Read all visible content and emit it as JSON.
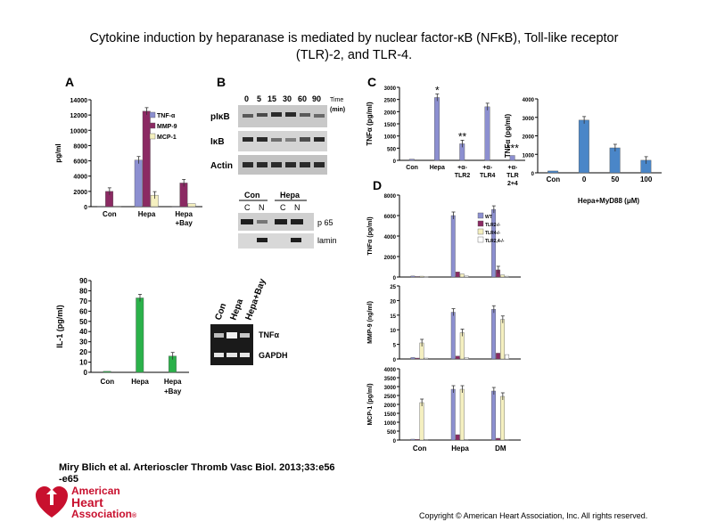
{
  "title": {
    "line1": "Cytokine induction by heparanase is mediated by nuclear factor-κB (NFκB), Toll-like receptor",
    "line2": "(TLR)-2, and TLR-4."
  },
  "panels": {
    "A": "A",
    "B": "B",
    "C": "C",
    "D": "D"
  },
  "blot_B": {
    "time_values": [
      "0",
      "5",
      "15",
      "30",
      "60",
      "90"
    ],
    "time_label": "Time",
    "time_unit": "(min)",
    "rows": [
      "pIκB",
      "IκB",
      "Actin"
    ],
    "lanes_groups": [
      "Con",
      "Hepa"
    ],
    "lanes_sub": [
      "C",
      "N",
      "C",
      "N"
    ],
    "rows2": [
      "p 65",
      "lamin"
    ]
  },
  "gel_A2": {
    "lanes": [
      "Con",
      "Hepa",
      "Hepa+Bay"
    ],
    "rows": [
      "TNFα",
      "GAPDH"
    ]
  },
  "citation": {
    "line1": "Miry Blich et al. Arterioscler Thromb Vasc Biol. 2013;33:e56",
    "line2": "-e65"
  },
  "logo": {
    "line1": "American",
    "line2": "Heart",
    "line3": "Association",
    "mark": "®"
  },
  "copyright": "Copyright © American Heart Association, Inc. All rights reserved.",
  "colors": {
    "purple": "#8b2a63",
    "blue": "#8c8fd0",
    "cream": "#f5f0c0",
    "green": "#2bb14a",
    "c_blue": "#4a86c8",
    "red": "#c8102e"
  },
  "chart_data": [
    {
      "id": "A-top",
      "type": "bar",
      "ylabel": "pg/ml",
      "ylim": [
        0,
        14000
      ],
      "yticks": [
        "0",
        "2000",
        "4000",
        "6000",
        "8000",
        "10000",
        "12000",
        "14000"
      ],
      "categories": [
        "Con",
        "Hepa",
        "Hepa +Bay"
      ],
      "legend": [
        "TNF-α",
        "MMP-9",
        "MCP-1"
      ],
      "series": [
        {
          "name": "TNF-α",
          "values": [
            0,
            6100,
            0
          ],
          "color": "#8c8fd0"
        },
        {
          "name": "MMP-9",
          "values": [
            2000,
            12500,
            3100
          ],
          "color": "#8b2a63"
        },
        {
          "name": "MCP-1",
          "values": [
            0,
            1500,
            400
          ],
          "color": "#f5f0c0"
        }
      ]
    },
    {
      "id": "A-bottom",
      "type": "bar",
      "ylabel": "IL-1 (pg/ml)",
      "ylim": [
        0,
        90
      ],
      "yticks": [
        "0",
        "10",
        "20",
        "30",
        "40",
        "50",
        "60",
        "70",
        "80",
        "90"
      ],
      "categories": [
        "Con",
        "Hepa",
        "Hepa +Bay"
      ],
      "series": [
        {
          "name": "IL-1",
          "values": [
            1,
            73,
            16
          ],
          "color": "#2bb14a"
        }
      ]
    },
    {
      "id": "C-left",
      "type": "bar",
      "ylabel": "TNFα (pg/ml)",
      "ylim": [
        0,
        3000
      ],
      "yticks": [
        "0",
        "500",
        "1000",
        "1500",
        "2000",
        "2500",
        "3000"
      ],
      "categories": [
        "Con",
        "Hepa",
        "+α- TLR2",
        "+α- TLR4",
        "+α- TLR 2+4"
      ],
      "annotations": [
        "*",
        "**",
        "***"
      ],
      "series": [
        {
          "name": "TNFα",
          "values": [
            50,
            2580,
            680,
            2200,
            200
          ],
          "color": "#8c8fd0"
        }
      ]
    },
    {
      "id": "C-right",
      "type": "bar",
      "ylabel": "TNFα (pg/ml)",
      "ylim": [
        0,
        4000
      ],
      "yticks": [
        "0",
        "1000",
        "2000",
        "3000",
        "4000"
      ],
      "categories": [
        "Con",
        "0",
        "50",
        "100"
      ],
      "xlabel": "Hepa+MyD88 (μM)",
      "series": [
        {
          "name": "TNFα",
          "values": [
            100,
            2850,
            1350,
            680
          ],
          "color": "#4a86c8"
        }
      ]
    },
    {
      "id": "D-1",
      "type": "bar",
      "ylabel": "TNFα (pg/ml)",
      "ylim": [
        0,
        8000
      ],
      "yticks": [
        "0",
        "2000",
        "4000",
        "6000",
        "8000"
      ],
      "categories": [
        "Con",
        "Hepa",
        "DM"
      ],
      "legend": [
        "WT",
        "TLR2-/-",
        "TLR4-/-",
        "TLR2,4-/-"
      ],
      "series": [
        {
          "name": "WT",
          "values": [
            100,
            6000,
            6600
          ],
          "color": "#8c8fd0"
        },
        {
          "name": "TLR2-/-",
          "values": [
            50,
            500,
            700
          ],
          "color": "#8b2a63"
        },
        {
          "name": "TLR4-/-",
          "values": [
            80,
            300,
            200
          ],
          "color": "#f5f0c0"
        },
        {
          "name": "TLR2,4-/-",
          "values": [
            30,
            100,
            80
          ],
          "color": "#ffffff"
        }
      ]
    },
    {
      "id": "D-2",
      "type": "bar",
      "ylabel": "MMP-9 (ng/ml)",
      "ylim": [
        0,
        25
      ],
      "yticks": [
        "0",
        "5",
        "10",
        "15",
        "20",
        "25"
      ],
      "categories": [
        "Con",
        "Hepa",
        "DM"
      ],
      "series": [
        {
          "name": "WT",
          "values": [
            0.5,
            16,
            17
          ],
          "color": "#8c8fd0"
        },
        {
          "name": "TLR2-/-",
          "values": [
            0.3,
            1,
            2
          ],
          "color": "#8b2a63"
        },
        {
          "name": "TLR4-/-",
          "values": [
            5.5,
            9,
            13.5
          ],
          "color": "#f5f0c0"
        },
        {
          "name": "TLR2,4-/-",
          "values": [
            0.3,
            0.5,
            1.5
          ],
          "color": "#ffffff"
        }
      ]
    },
    {
      "id": "D-3",
      "type": "bar",
      "ylabel": "MCP-1 (pg/ml)",
      "ylim": [
        0,
        4000
      ],
      "yticks": [
        "0",
        "500",
        "1000",
        "1500",
        "2000",
        "2500",
        "3000",
        "3500",
        "4000"
      ],
      "categories": [
        "Con",
        "Hepa",
        "DM"
      ],
      "series": [
        {
          "name": "WT",
          "values": [
            50,
            2850,
            2750
          ],
          "color": "#8c8fd0"
        },
        {
          "name": "TLR2-/-",
          "values": [
            40,
            300,
            100
          ],
          "color": "#8b2a63"
        },
        {
          "name": "TLR4-/-",
          "values": [
            2100,
            2850,
            2450
          ],
          "color": "#f5f0c0"
        },
        {
          "name": "TLR2,4-/-",
          "values": [
            30,
            30,
            30
          ],
          "color": "#ffffff"
        }
      ]
    }
  ]
}
